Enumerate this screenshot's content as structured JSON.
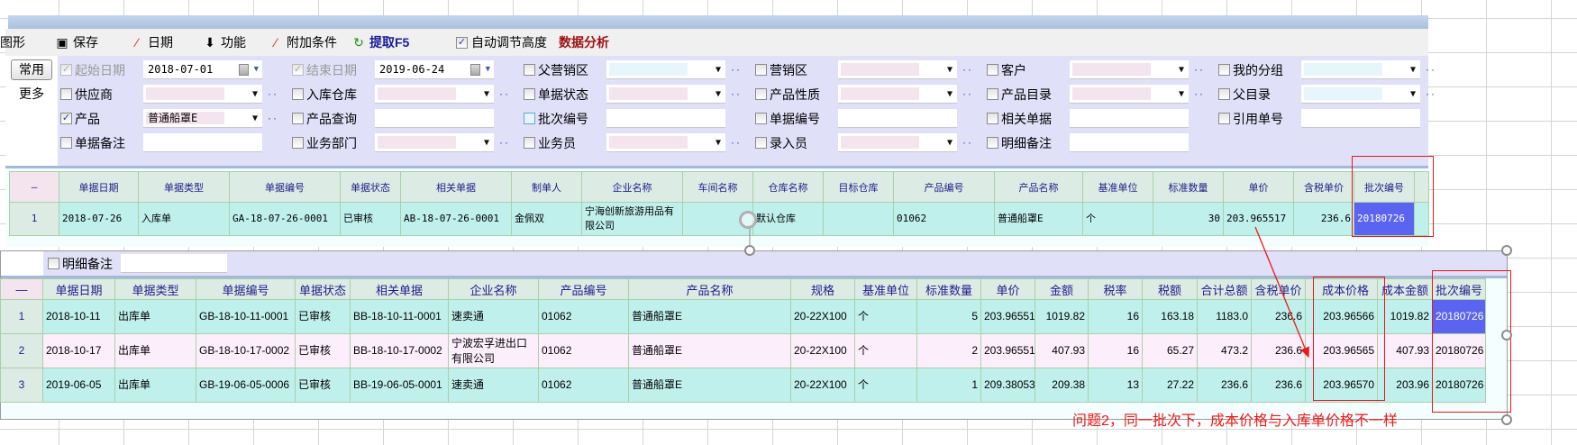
{
  "toolbar": {
    "items": [
      {
        "label": "图形",
        "icon": ""
      },
      {
        "label": "保存",
        "icon": "save-icon"
      },
      {
        "label": "日期",
        "icon": "wand-icon"
      },
      {
        "label": "功能",
        "icon": "down-arrow-icon"
      },
      {
        "label": "附加条件",
        "icon": "wand-icon"
      },
      {
        "label": "提取F5",
        "icon": "refresh-document-icon"
      }
    ],
    "auto_height": {
      "label": "自动调节高度",
      "checked": true
    },
    "analysis_label": "数据分析"
  },
  "filter_tabs": [
    "常用",
    "更多"
  ],
  "filters": [
    [
      {
        "label": "起始日期",
        "checked": true,
        "disabled": true,
        "type": "date",
        "value": "2018-07-01"
      },
      {
        "label": "结束日期",
        "checked": true,
        "disabled": true,
        "type": "date",
        "value": "2019-06-24"
      },
      {
        "label": "父营销区",
        "checked": false,
        "type": "combo",
        "fill": "#e6f6fc",
        "value": ""
      },
      {
        "label": "营销区",
        "checked": false,
        "type": "combo",
        "fill": "#f4e4ee",
        "value": ""
      },
      {
        "label": "客户",
        "checked": false,
        "type": "combo",
        "fill": "#f4e4ee",
        "value": ""
      },
      {
        "label": "我的分组",
        "checked": false,
        "type": "combo",
        "fill": "#e6f6fc",
        "value": ""
      }
    ],
    [
      {
        "label": "供应商",
        "checked": false,
        "type": "combo",
        "fill": "#f4e4ee",
        "value": ""
      },
      {
        "label": "入库仓库",
        "checked": false,
        "type": "combo",
        "fill": "#f4e4ee",
        "value": ""
      },
      {
        "label": "单据状态",
        "checked": false,
        "type": "combo",
        "fill": "#f4e4ee",
        "value": ""
      },
      {
        "label": "产品性质",
        "checked": false,
        "type": "combo",
        "fill": "#f4e4ee",
        "value": ""
      },
      {
        "label": "产品目录",
        "checked": false,
        "type": "combo",
        "fill": "#f4e4ee",
        "value": ""
      },
      {
        "label": "父目录",
        "checked": false,
        "type": "combo",
        "fill": "#e6f6fc",
        "value": ""
      }
    ],
    [
      {
        "label": "产品",
        "checked": true,
        "type": "combo",
        "fill": "#f4e4ee",
        "value": "普通船罩E"
      },
      {
        "label": "产品查询",
        "checked": false,
        "type": "text",
        "value": ""
      },
      {
        "label": "批次编号",
        "checked": false,
        "highlight": true,
        "type": "text",
        "value": ""
      },
      {
        "label": "单据编号",
        "checked": false,
        "type": "text",
        "value": ""
      },
      {
        "label": "相关单据",
        "checked": false,
        "type": "text",
        "value": ""
      },
      {
        "label": "引用单号",
        "checked": false,
        "type": "text",
        "value": ""
      }
    ],
    [
      {
        "label": "单据备注",
        "checked": false,
        "type": "text",
        "value": ""
      },
      {
        "label": "业务部门",
        "checked": false,
        "type": "combo",
        "fill": "#f4e4ee",
        "value": ""
      },
      {
        "label": "业务员",
        "checked": false,
        "type": "combo",
        "fill": "#f4e4ee",
        "value": ""
      },
      {
        "label": "录入员",
        "checked": false,
        "type": "combo",
        "fill": "#f4e4ee",
        "value": ""
      },
      {
        "label": "明细备注",
        "checked": false,
        "type": "text",
        "value": ""
      }
    ]
  ],
  "grid_in": {
    "columns": [
      "—",
      "单据日期",
      "单据类型",
      "单据编号",
      "单据状态",
      "相关单据",
      "制单人",
      "企业名称",
      "车间名称",
      "仓库名称",
      "目标仓库",
      "产品编号",
      "产品名称",
      "基准单位",
      "标准数量",
      "单价",
      "含税单价",
      "批次编号",
      ""
    ],
    "rows": [
      [
        "1",
        "2018-07-26",
        "入库单",
        "GA-18-07-26-0001",
        "已审核",
        "AB-18-07-26-0001",
        "金佩双",
        "宁海创新旅游用品有限公司",
        "",
        "默认仓库",
        "",
        "01062",
        "普通船罩E",
        "个",
        "30",
        "203.965517",
        "236.6",
        "20180726",
        ""
      ]
    ]
  },
  "grid_out": {
    "detail_note_label": "明细备注",
    "columns": [
      "—",
      "单据日期",
      "单据类型",
      "单据编号",
      "单据状态",
      "相关单据",
      "企业名称",
      "产品编号",
      "产品名称",
      "规格",
      "基准单位",
      "标准数量",
      "单价",
      "金额",
      "税率",
      "税额",
      "合计总额",
      "含税单价",
      "",
      "成本价格",
      "成本金额",
      "批次编号"
    ],
    "rows": [
      [
        "1",
        "2018-10-11",
        "出库单",
        "GB-18-10-11-0001",
        "已审核",
        "BB-18-10-11-0001",
        "速卖通",
        "01062",
        "普通船罩E",
        "20-22X100",
        "个",
        "5",
        "203.965517",
        "1019.82",
        "16",
        "163.18",
        "1183.0",
        "236.6",
        "",
        "203.96566",
        "1019.82",
        "20180726"
      ],
      [
        "2",
        "2018-10-17",
        "出库单",
        "GB-18-10-17-0002",
        "已审核",
        "BB-18-10-17-0002",
        "宁波宏孚进出口有限公司",
        "01062",
        "普通船罩E",
        "20-22X100",
        "个",
        "2",
        "203.965517",
        "407.93",
        "16",
        "65.27",
        "473.2",
        "236.6",
        "",
        "203.96565",
        "407.93",
        "20180726"
      ],
      [
        "3",
        "2019-06-05",
        "出库单",
        "GB-19-06-05-0006",
        "已审核",
        "BB-19-06-05-0001",
        "速卖通",
        "01062",
        "普通船罩E",
        "20-22X100",
        "个",
        "1",
        "209.380531",
        "209.38",
        "13",
        "27.22",
        "236.6",
        "236.6",
        "",
        "203.96570",
        "203.96",
        "20180726"
      ]
    ]
  },
  "annotation": {
    "note": "问题2，同一批次下，成本价格与入库单价格不一样",
    "color": "#f01818"
  },
  "colors": {
    "selected_cell": "#5a64f0",
    "header_text": "#1e1e8a",
    "row_cyan": "#c0f0ec",
    "row_pink": "#fdeefc"
  }
}
